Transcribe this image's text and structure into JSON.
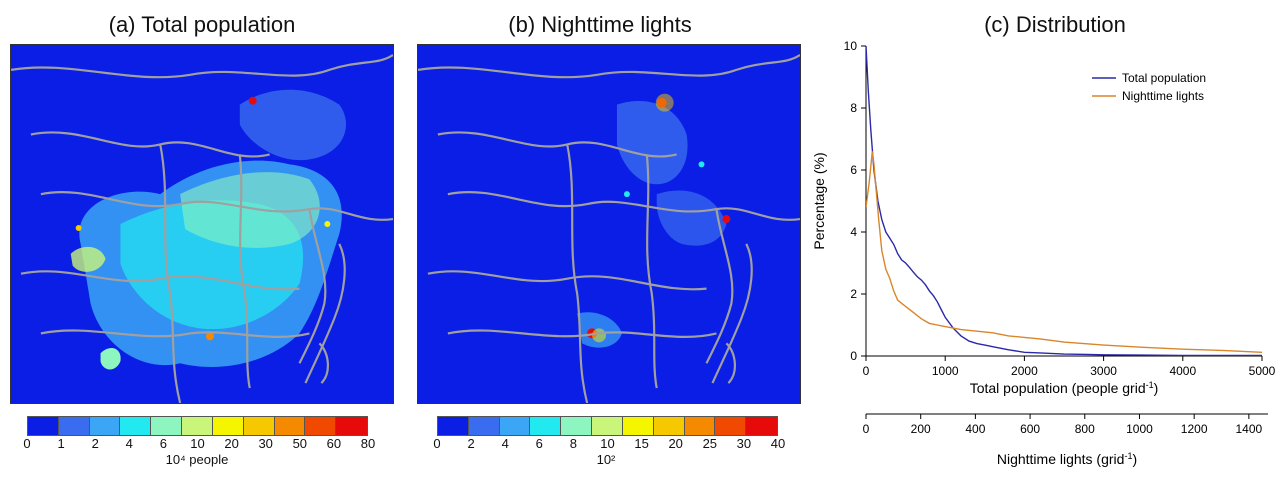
{
  "panels": {
    "a": {
      "title": "(a) Total population",
      "colorbar": {
        "ticks": [
          "0",
          "1",
          "2",
          "4",
          "6",
          "10",
          "20",
          "30",
          "50",
          "60",
          "80"
        ],
        "unit": "10⁴ people",
        "colors": [
          "#0a1ee6",
          "#3a6cf0",
          "#3aa6f5",
          "#22e8f0",
          "#8cf5c0",
          "#c8f57a",
          "#f5f500",
          "#f5c800",
          "#f58a00",
          "#f04a00",
          "#e60a0a"
        ]
      }
    },
    "b": {
      "title": "(b) Nighttime lights",
      "colorbar": {
        "ticks": [
          "0",
          "2",
          "4",
          "6",
          "8",
          "10",
          "15",
          "20",
          "25",
          "30",
          "40"
        ],
        "unit": "10²",
        "colors": [
          "#0a1ee6",
          "#3a6cf0",
          "#3aa6f5",
          "#22e8f0",
          "#8cf5c0",
          "#c8f57a",
          "#f5f500",
          "#f5c800",
          "#f58a00",
          "#f04a00",
          "#e60a0a"
        ]
      }
    },
    "c": {
      "title": "(c) Distribution"
    }
  },
  "chart_data": {
    "type": "line",
    "title": "(c) Distribution",
    "ylabel": "Percentage (%)",
    "ylim": [
      0,
      10
    ],
    "yticks": [
      "0",
      "2",
      "4",
      "6",
      "8",
      "10"
    ],
    "xlabel": "Total population (people grid",
    "xlabel_sup": "-1",
    "xlabel_end": ")",
    "xlim": [
      0,
      5000
    ],
    "xticks": [
      "0",
      "1000",
      "2000",
      "3000",
      "4000",
      "5000"
    ],
    "x2label": "Nighttime lights (grid",
    "x2label_sup": "-1",
    "x2label_end": ")",
    "x2lim": [
      0,
      1470
    ],
    "x2ticks": [
      "0",
      "200",
      "400",
      "600",
      "800",
      "1000",
      "1200",
      "1400"
    ],
    "legend_position": "top-right",
    "series": [
      {
        "name": "Total population",
        "color": "#2a2aa8",
        "x": [
          0,
          30,
          60,
          100,
          150,
          200,
          250,
          300,
          350,
          400,
          450,
          500,
          550,
          600,
          650,
          700,
          750,
          800,
          850,
          900,
          950,
          1000,
          1100,
          1200,
          1300,
          1400,
          1500,
          1600,
          1800,
          2000,
          2200,
          2500,
          2800,
          3000,
          3500,
          4000,
          4500,
          5000
        ],
        "values": [
          10.0,
          8.5,
          7.3,
          6.0,
          5.0,
          4.4,
          4.0,
          3.8,
          3.6,
          3.3,
          3.1,
          3.0,
          2.85,
          2.7,
          2.55,
          2.45,
          2.3,
          2.1,
          1.95,
          1.75,
          1.5,
          1.25,
          0.9,
          0.65,
          0.48,
          0.4,
          0.35,
          0.3,
          0.2,
          0.12,
          0.1,
          0.06,
          0.05,
          0.04,
          0.03,
          0.02,
          0.02,
          0.02
        ]
      },
      {
        "name": "Nighttime lights",
        "color": "#d9862a",
        "x": [
          0,
          40,
          80,
          100,
          130,
          160,
          200,
          250,
          300,
          350,
          400,
          450,
          500,
          600,
          700,
          800,
          900,
          1000,
          1100,
          1200,
          1400,
          1600,
          1800,
          2000,
          2200,
          2500,
          3000,
          3500,
          4000,
          4500,
          5000
        ],
        "values": [
          4.8,
          5.6,
          6.6,
          6.2,
          5.3,
          4.4,
          3.4,
          2.8,
          2.5,
          2.1,
          1.8,
          1.7,
          1.6,
          1.4,
          1.2,
          1.05,
          1.0,
          0.95,
          0.9,
          0.85,
          0.8,
          0.75,
          0.65,
          0.6,
          0.55,
          0.45,
          0.35,
          0.28,
          0.22,
          0.18,
          0.12
        ]
      }
    ]
  }
}
